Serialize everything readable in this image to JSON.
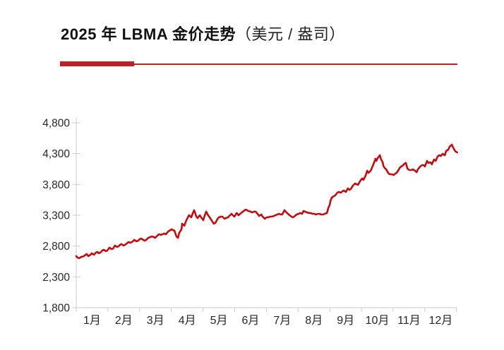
{
  "header": {
    "title_main": "2025 年 LBMA 金价走势",
    "title_unit": "（美元 / 盎司）"
  },
  "colors": {
    "background": "#FFFFFF",
    "title_text": "#111111",
    "accent_bar": "#BE2228",
    "line": "#C20B0F",
    "axis": "#C9C9C9",
    "tick": "#CCCCCC",
    "axis_label": "#262626"
  },
  "chart_data": {
    "type": "line",
    "title": "2025 年 LBMA 金价走势（美元 / 盎司）",
    "xlabel": "",
    "ylabel": "",
    "unit": "美元/盎司",
    "grid": false,
    "legend": null,
    "ylim": [
      1800,
      4800
    ],
    "y_ticks": [
      1800,
      2300,
      2800,
      3300,
      3800,
      4300,
      4800
    ],
    "y_tick_labels": [
      "1,800",
      "2,300",
      "2,800",
      "3,300",
      "3,800",
      "4,300",
      "4,800"
    ],
    "x_months": 12,
    "x_tick_labels": [
      "1月",
      "2月",
      "3月",
      "4月",
      "5月",
      "6月",
      "7月",
      "8月",
      "9月",
      "10月",
      "11月",
      "12月"
    ],
    "series": [
      {
        "name": "LBMA 金价",
        "points": [
          [
            0.0,
            2636
          ],
          [
            0.04,
            2613
          ],
          [
            0.09,
            2601
          ],
          [
            0.16,
            2624
          ],
          [
            0.22,
            2630
          ],
          [
            0.27,
            2648
          ],
          [
            0.33,
            2670
          ],
          [
            0.38,
            2636
          ],
          [
            0.45,
            2659
          ],
          [
            0.49,
            2682
          ],
          [
            0.56,
            2659
          ],
          [
            0.62,
            2693
          ],
          [
            0.67,
            2705
          ],
          [
            0.71,
            2682
          ],
          [
            0.76,
            2693
          ],
          [
            0.82,
            2728
          ],
          [
            0.87,
            2739
          ],
          [
            0.94,
            2716
          ],
          [
            0.98,
            2728
          ],
          [
            1.05,
            2774
          ],
          [
            1.11,
            2751
          ],
          [
            1.16,
            2756
          ],
          [
            1.22,
            2808
          ],
          [
            1.29,
            2785
          ],
          [
            1.34,
            2797
          ],
          [
            1.38,
            2820
          ],
          [
            1.43,
            2831
          ],
          [
            1.49,
            2808
          ],
          [
            1.54,
            2820
          ],
          [
            1.6,
            2843
          ],
          [
            1.65,
            2865
          ],
          [
            1.71,
            2854
          ],
          [
            1.76,
            2865
          ],
          [
            1.83,
            2900
          ],
          [
            1.89,
            2876
          ],
          [
            1.94,
            2882
          ],
          [
            2.0,
            2910
          ],
          [
            2.05,
            2922
          ],
          [
            2.12,
            2899
          ],
          [
            2.16,
            2887
          ],
          [
            2.23,
            2910
          ],
          [
            2.27,
            2933
          ],
          [
            2.34,
            2945
          ],
          [
            2.38,
            2957
          ],
          [
            2.45,
            2945
          ],
          [
            2.49,
            2933
          ],
          [
            2.56,
            2968
          ],
          [
            2.61,
            2991
          ],
          [
            2.67,
            2980
          ],
          [
            2.72,
            2991
          ],
          [
            2.78,
            3003
          ],
          [
            2.83,
            2991
          ],
          [
            2.9,
            3037
          ],
          [
            2.94,
            3048
          ],
          [
            3.01,
            3071
          ],
          [
            3.05,
            3059
          ],
          [
            3.1,
            3048
          ],
          [
            3.16,
            2957
          ],
          [
            3.21,
            2933
          ],
          [
            3.25,
            3014
          ],
          [
            3.32,
            3071
          ],
          [
            3.34,
            3163
          ],
          [
            3.41,
            3128
          ],
          [
            3.45,
            3186
          ],
          [
            3.5,
            3243
          ],
          [
            3.56,
            3300
          ],
          [
            3.63,
            3266
          ],
          [
            3.67,
            3323
          ],
          [
            3.72,
            3381
          ],
          [
            3.79,
            3277
          ],
          [
            3.83,
            3254
          ],
          [
            3.9,
            3300
          ],
          [
            3.94,
            3266
          ],
          [
            4.01,
            3220
          ],
          [
            4.05,
            3289
          ],
          [
            4.1,
            3358
          ],
          [
            4.16,
            3300
          ],
          [
            4.21,
            3266
          ],
          [
            4.28,
            3209
          ],
          [
            4.34,
            3163
          ],
          [
            4.39,
            3174
          ],
          [
            4.45,
            3232
          ],
          [
            4.5,
            3266
          ],
          [
            4.57,
            3277
          ],
          [
            4.61,
            3277
          ],
          [
            4.68,
            3243
          ],
          [
            4.72,
            3254
          ],
          [
            4.79,
            3266
          ],
          [
            4.83,
            3289
          ],
          [
            4.9,
            3323
          ],
          [
            4.94,
            3300
          ],
          [
            4.99,
            3277
          ],
          [
            5.06,
            3335
          ],
          [
            5.12,
            3300
          ],
          [
            5.17,
            3323
          ],
          [
            5.23,
            3346
          ],
          [
            5.28,
            3369
          ],
          [
            5.35,
            3392
          ],
          [
            5.39,
            3381
          ],
          [
            5.43,
            3369
          ],
          [
            5.5,
            3358
          ],
          [
            5.55,
            3346
          ],
          [
            5.61,
            3358
          ],
          [
            5.66,
            3358
          ],
          [
            5.72,
            3323
          ],
          [
            5.77,
            3289
          ],
          [
            5.84,
            3312
          ],
          [
            5.88,
            3277
          ],
          [
            5.95,
            3243
          ],
          [
            6.01,
            3266
          ],
          [
            6.06,
            3266
          ],
          [
            6.12,
            3277
          ],
          [
            6.17,
            3277
          ],
          [
            6.24,
            3289
          ],
          [
            6.28,
            3300
          ],
          [
            6.35,
            3312
          ],
          [
            6.39,
            3323
          ],
          [
            6.46,
            3312
          ],
          [
            6.5,
            3312
          ],
          [
            6.57,
            3381
          ],
          [
            6.61,
            3358
          ],
          [
            6.68,
            3323
          ],
          [
            6.73,
            3300
          ],
          [
            6.79,
            3277
          ],
          [
            6.84,
            3266
          ],
          [
            6.9,
            3289
          ],
          [
            6.95,
            3312
          ],
          [
            7.02,
            3323
          ],
          [
            7.06,
            3335
          ],
          [
            7.13,
            3323
          ],
          [
            7.17,
            3369
          ],
          [
            7.22,
            3358
          ],
          [
            7.28,
            3346
          ],
          [
            7.35,
            3335
          ],
          [
            7.39,
            3335
          ],
          [
            7.46,
            3323
          ],
          [
            7.51,
            3323
          ],
          [
            7.57,
            3312
          ],
          [
            7.62,
            3323
          ],
          [
            7.68,
            3323
          ],
          [
            7.73,
            3312
          ],
          [
            7.79,
            3312
          ],
          [
            7.84,
            3323
          ],
          [
            7.91,
            3335
          ],
          [
            7.95,
            3415
          ],
          [
            8.0,
            3472
          ],
          [
            8.02,
            3529
          ],
          [
            8.06,
            3586
          ],
          [
            8.13,
            3609
          ],
          [
            8.17,
            3621
          ],
          [
            8.24,
            3666
          ],
          [
            8.28,
            3678
          ],
          [
            8.35,
            3666
          ],
          [
            8.4,
            3689
          ],
          [
            8.44,
            3701
          ],
          [
            8.51,
            3678
          ],
          [
            8.57,
            3735
          ],
          [
            8.62,
            3712
          ],
          [
            8.66,
            3723
          ],
          [
            8.73,
            3781
          ],
          [
            8.8,
            3815
          ],
          [
            8.84,
            3804
          ],
          [
            8.89,
            3792
          ],
          [
            8.95,
            3850
          ],
          [
            9.02,
            3896
          ],
          [
            9.06,
            3873
          ],
          [
            9.13,
            3941
          ],
          [
            9.18,
            4022
          ],
          [
            9.22,
            3987
          ],
          [
            9.29,
            4022
          ],
          [
            9.33,
            4067
          ],
          [
            9.4,
            4159
          ],
          [
            9.44,
            4216
          ],
          [
            9.47,
            4182
          ],
          [
            9.51,
            4228
          ],
          [
            9.55,
            4250
          ],
          [
            9.58,
            4273
          ],
          [
            9.62,
            4205
          ],
          [
            9.67,
            4159
          ],
          [
            9.69,
            4102
          ],
          [
            9.73,
            4067
          ],
          [
            9.78,
            4044
          ],
          [
            9.84,
            3987
          ],
          [
            9.89,
            3964
          ],
          [
            9.96,
            3964
          ],
          [
            10.02,
            3953
          ],
          [
            10.07,
            3976
          ],
          [
            10.11,
            3987
          ],
          [
            10.18,
            4044
          ],
          [
            10.22,
            4079
          ],
          [
            10.29,
            4102
          ],
          [
            10.36,
            4136
          ],
          [
            10.4,
            4148
          ],
          [
            10.45,
            4056
          ],
          [
            10.51,
            4033
          ],
          [
            10.58,
            4033
          ],
          [
            10.62,
            4044
          ],
          [
            10.69,
            4022
          ],
          [
            10.74,
            3999
          ],
          [
            10.78,
            4044
          ],
          [
            10.85,
            4090
          ],
          [
            10.91,
            4113
          ],
          [
            10.96,
            4113
          ],
          [
            11.0,
            4090
          ],
          [
            11.07,
            4182
          ],
          [
            11.11,
            4148
          ],
          [
            11.18,
            4159
          ],
          [
            11.22,
            4125
          ],
          [
            11.29,
            4205
          ],
          [
            11.34,
            4182
          ],
          [
            11.4,
            4250
          ],
          [
            11.45,
            4273
          ],
          [
            11.51,
            4262
          ],
          [
            11.56,
            4296
          ],
          [
            11.63,
            4273
          ],
          [
            11.67,
            4342
          ],
          [
            11.74,
            4365
          ],
          [
            11.78,
            4411
          ],
          [
            11.85,
            4445
          ],
          [
            11.89,
            4399
          ],
          [
            11.94,
            4353
          ],
          [
            11.98,
            4330
          ],
          [
            12.02,
            4319
          ]
        ]
      }
    ]
  }
}
